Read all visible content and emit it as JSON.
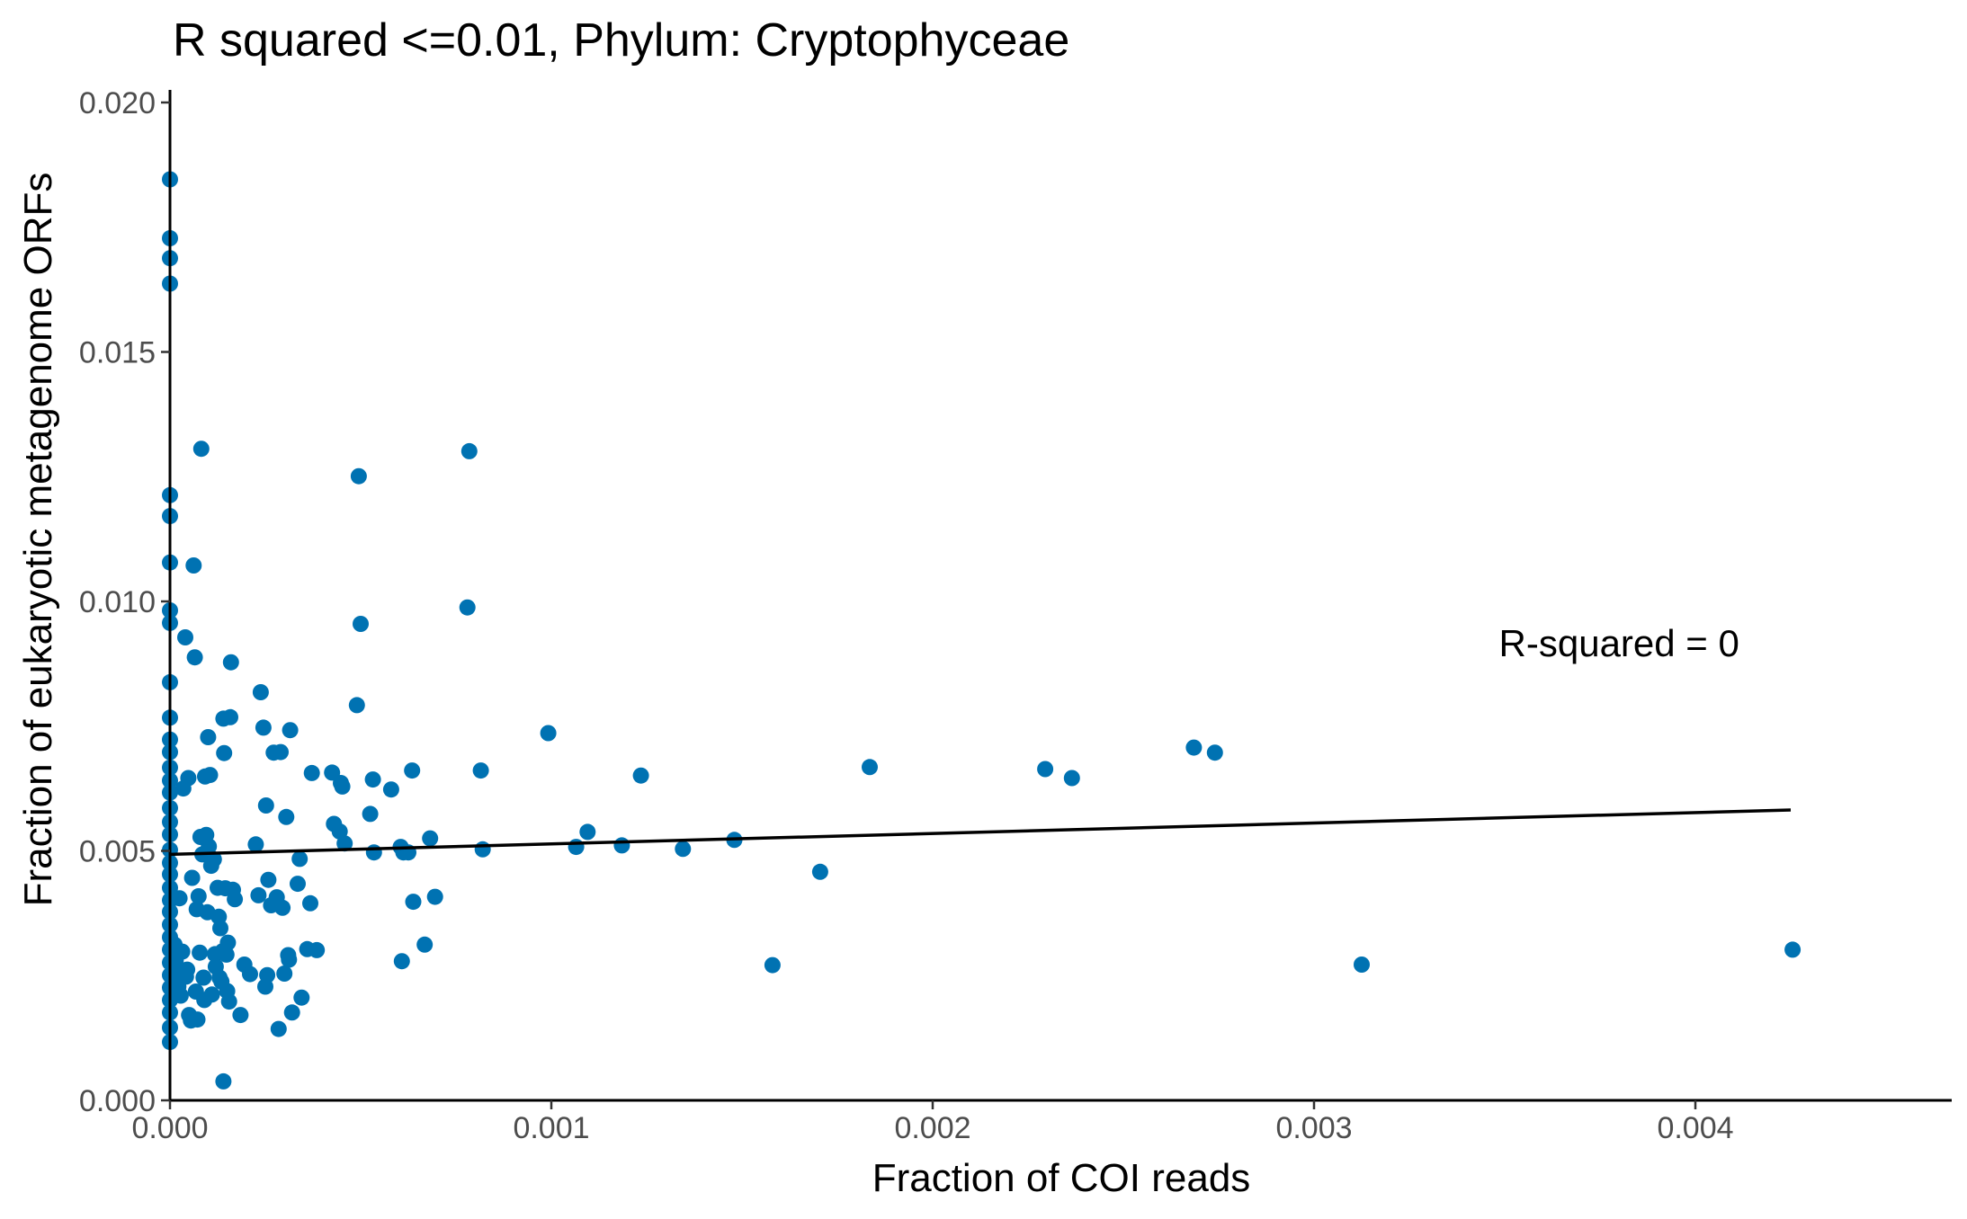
{
  "chart_data": {
    "type": "scatter",
    "title": "R squared <=0.01, Phylum:  Cryptophyceae",
    "xlabel": "Fraction of COI reads",
    "ylabel": "Fraction of eukaryotic metagenome ORFs",
    "xlim": [
      0,
      0.00467
    ],
    "ylim": [
      0,
      0.0202
    ],
    "x_ticks": [
      0,
      0.001,
      0.002,
      0.003,
      0.004
    ],
    "x_tick_labels": [
      "0.000",
      "0.001",
      "0.002",
      "0.003",
      "0.004"
    ],
    "y_ticks": [
      0,
      0.005,
      0.01,
      0.015,
      0.02
    ],
    "y_tick_labels": [
      "0.000",
      "0.005",
      "0.010",
      "0.015",
      "0.020"
    ],
    "point_color": "#0072B2",
    "line_color": "#000000",
    "grid": false,
    "legend": "none",
    "annotation": {
      "text": "R-squared =  0",
      "x": 0.0038,
      "y": 0.0089
    },
    "fit_line": {
      "x": [
        0,
        0.00425
      ],
      "y": [
        0.00493,
        0.00582
      ]
    },
    "points": [
      [
        0,
        0.01846
      ],
      [
        0,
        0.01728
      ],
      [
        0,
        0.01688
      ],
      [
        0,
        0.01637
      ],
      [
        0,
        0.01213
      ],
      [
        0,
        0.01171
      ],
      [
        0,
        0.01078
      ],
      [
        0,
        0.00982
      ],
      [
        0,
        0.00957
      ],
      [
        0,
        0.00838
      ],
      [
        0,
        0.00767
      ],
      [
        0,
        0.00723
      ],
      [
        0,
        0.00698
      ],
      [
        0,
        0.00667
      ],
      [
        0,
        0.00641
      ],
      [
        0,
        0.00617
      ],
      [
        0,
        0.00586
      ],
      [
        0,
        0.00558
      ],
      [
        0,
        0.00533
      ],
      [
        0,
        0.00502
      ],
      [
        0,
        0.00476
      ],
      [
        0,
        0.00453
      ],
      [
        0,
        0.00426
      ],
      [
        0,
        0.00401
      ],
      [
        0,
        0.00378
      ],
      [
        0,
        0.00352
      ],
      [
        0,
        0.00327
      ],
      [
        0,
        0.00302
      ],
      [
        0,
        0.00276
      ],
      [
        0,
        0.00251
      ],
      [
        0,
        0.00226
      ],
      [
        0,
        0.00201
      ],
      [
        0,
        0.00176
      ],
      [
        0,
        0.00146
      ],
      [
        0,
        0.00117
      ],
      [
        1.2e-05,
        0.00312
      ],
      [
        1.5e-05,
        0.00281
      ],
      [
        2e-05,
        0.00255
      ],
      [
        2.2e-05,
        0.00228
      ],
      [
        2.5e-05,
        0.00405
      ],
      [
        2.8e-05,
        0.0021
      ],
      [
        3.2e-05,
        0.00298
      ],
      [
        3.5e-05,
        0.00625
      ],
      [
        4e-05,
        0.00928
      ],
      [
        4.2e-05,
        0.00248
      ],
      [
        4.5e-05,
        0.00262
      ],
      [
        4.8e-05,
        0.00646
      ],
      [
        5e-05,
        0.00171
      ],
      [
        5.5e-05,
        0.0016
      ],
      [
        5.8e-05,
        0.00446
      ],
      [
        6.2e-05,
        0.01072
      ],
      [
        6.5e-05,
        0.00888
      ],
      [
        6.8e-05,
        0.00218
      ],
      [
        7e-05,
        0.00383
      ],
      [
        7.2e-05,
        0.00162
      ],
      [
        7.5e-05,
        0.00409
      ],
      [
        7.8e-05,
        0.00296
      ],
      [
        8e-05,
        0.00528
      ],
      [
        8.2e-05,
        0.01306
      ],
      [
        8.5e-05,
        0.00493
      ],
      [
        8.8e-05,
        0.00246
      ],
      [
        9e-05,
        0.00201
      ],
      [
        9.2e-05,
        0.00649
      ],
      [
        9.5e-05,
        0.00532
      ],
      [
        9.8e-05,
        0.00377
      ],
      [
        0.0001,
        0.00728
      ],
      [
        0.000102,
        0.00509
      ],
      [
        0.000105,
        0.00652
      ],
      [
        0.000108,
        0.0047
      ],
      [
        0.00011,
        0.00212
      ],
      [
        0.000115,
        0.00483
      ],
      [
        0.000118,
        0.00293
      ],
      [
        0.00012,
        0.00268
      ],
      [
        0.000125,
        0.00426
      ],
      [
        0.000128,
        0.00368
      ],
      [
        0.00013,
        0.00246
      ],
      [
        0.000132,
        0.00345
      ],
      [
        0.000135,
        0.00238
      ],
      [
        0.000138,
        0.00299
      ],
      [
        0.00014,
        0.00765
      ],
      [
        0.000142,
        0.00696
      ],
      [
        0.000145,
        0.00425
      ],
      [
        0.000148,
        0.00292
      ],
      [
        0.00015,
        0.00219
      ],
      [
        0.000152,
        0.00316
      ],
      [
        0.000155,
        0.00198
      ],
      [
        0.000158,
        0.00768
      ],
      [
        0.00016,
        0.00878
      ],
      [
        0.000165,
        0.00422
      ],
      [
        0.00017,
        0.00403
      ],
      [
        0.00014,
        0.00038
      ],
      [
        0.000185,
        0.00171
      ],
      [
        0.000195,
        0.00272
      ],
      [
        0.00021,
        0.00253
      ],
      [
        0.000225,
        0.00513
      ],
      [
        0.000232,
        0.00411
      ],
      [
        0.000238,
        0.00818
      ],
      [
        0.000245,
        0.00747
      ],
      [
        0.00025,
        0.00228
      ],
      [
        0.000252,
        0.00591
      ],
      [
        0.000255,
        0.00251
      ],
      [
        0.000258,
        0.00442
      ],
      [
        0.000265,
        0.00391
      ],
      [
        0.000272,
        0.00697
      ],
      [
        0.00028,
        0.00407
      ],
      [
        0.000285,
        0.00143
      ],
      [
        0.00029,
        0.00698
      ],
      [
        0.000295,
        0.00386
      ],
      [
        0.0003,
        0.00254
      ],
      [
        0.000305,
        0.00568
      ],
      [
        0.00031,
        0.00291
      ],
      [
        0.000312,
        0.00282
      ],
      [
        0.000315,
        0.00742
      ],
      [
        0.00032,
        0.00176
      ],
      [
        0.000335,
        0.00434
      ],
      [
        0.00034,
        0.00484
      ],
      [
        0.000345,
        0.00206
      ],
      [
        0.00036,
        0.00303
      ],
      [
        0.000368,
        0.00395
      ],
      [
        0.000372,
        0.00656
      ],
      [
        0.000385,
        0.00301
      ],
      [
        0.000425,
        0.00657
      ],
      [
        0.00043,
        0.00554
      ],
      [
        0.000445,
        0.00539
      ],
      [
        0.000448,
        0.00636
      ],
      [
        0.000452,
        0.00629
      ],
      [
        0.000458,
        0.00515
      ],
      [
        0.00049,
        0.00792
      ],
      [
        0.000495,
        0.01251
      ],
      [
        0.0005,
        0.00955
      ],
      [
        0.000525,
        0.00574
      ],
      [
        0.000532,
        0.00643
      ],
      [
        0.000535,
        0.00497
      ],
      [
        0.00058,
        0.00623
      ],
      [
        0.000605,
        0.00508
      ],
      [
        0.000608,
        0.00279
      ],
      [
        0.000612,
        0.00497
      ],
      [
        0.000625,
        0.00497
      ],
      [
        0.000635,
        0.00661
      ],
      [
        0.000638,
        0.00398
      ],
      [
        0.000668,
        0.00312
      ],
      [
        0.000682,
        0.00525
      ],
      [
        0.000695,
        0.00408
      ],
      [
        0.00078,
        0.00988
      ],
      [
        0.000785,
        0.01301
      ],
      [
        0.000815,
        0.00661
      ],
      [
        0.00082,
        0.00503
      ],
      [
        0.000992,
        0.00736
      ],
      [
        0.001065,
        0.00508
      ],
      [
        0.001095,
        0.00538
      ],
      [
        0.001185,
        0.00511
      ],
      [
        0.001235,
        0.00651
      ],
      [
        0.001345,
        0.00504
      ],
      [
        0.00148,
        0.00522
      ],
      [
        0.00158,
        0.00271
      ],
      [
        0.001705,
        0.00458
      ],
      [
        0.001835,
        0.00668
      ],
      [
        0.002295,
        0.00664
      ],
      [
        0.002365,
        0.00646
      ],
      [
        0.002685,
        0.00707
      ],
      [
        0.00274,
        0.00697
      ],
      [
        0.003125,
        0.00272
      ],
      [
        0.004255,
        0.00302
      ]
    ]
  }
}
